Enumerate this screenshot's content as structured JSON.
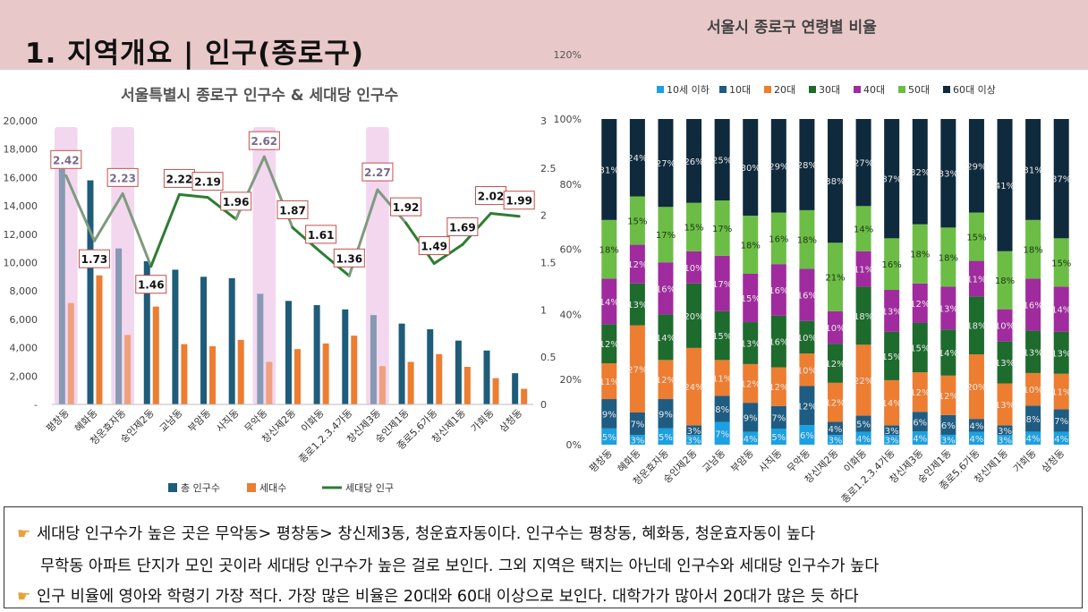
{
  "slide": {
    "title": "1. 지역개요 | 인구(종로구)"
  },
  "notes": [
    {
      "icon": "pointing-hand-icon",
      "text": "세대당 인구수가 높은 곳은 무악동> 평창동> 창신제3동, 청운효자동이다. 인구수는 평창동, 혜화동, 청운효자동이 높다"
    },
    {
      "icon": "",
      "text": "무학동 아파트 단지가 모인 곳이라 세대당 인구수가 높은 걸로 보인다. 그외 지역은 택지는 아닌데 인구수와 세대당 인구수가 높다"
    },
    {
      "icon": "pointing-hand-icon",
      "text": "인구 비율에 영아와 학령기 가장 적다. 가장 많은 비율은 20대와 60대 이상으로 보인다. 대학가가 많아서 20대가 많은 듯 하다"
    }
  ],
  "colors": {
    "population": "#1e5c7a",
    "households": "#ed7d31",
    "per_household": "#2e7d32",
    "highlight": "#f3d7ef",
    "age_10under": "#1ba1e2",
    "age_10s": "#1f5c82",
    "age_20s": "#ed7d31",
    "age_30s": "#1e6b2e",
    "age_40s": "#a02b9e",
    "age_50s": "#6cbd45",
    "age_60plus": "#0f2a3c"
  },
  "chart_data": [
    {
      "type": "bar",
      "title": "서울특별시 종로구 인구수 & 세대당 인구수",
      "categories": [
        "평창동",
        "혜화동",
        "청운효자동",
        "숭인제2동",
        "교남동",
        "부암동",
        "사직동",
        "무악동",
        "창신제2동",
        "이화동",
        "종로1.2.3.4가동",
        "창신제3동",
        "숭인제1동",
        "종로5.6가동",
        "창신제1동",
        "가회동",
        "삼청동"
      ],
      "highlighted": [
        "평창동",
        "청운효자동",
        "무악동",
        "창신제3동"
      ],
      "series": [
        {
          "name": "총 인구수",
          "axis": "left",
          "values": [
            16600,
            15800,
            11000,
            10100,
            9500,
            9000,
            8900,
            7800,
            7300,
            7000,
            6700,
            6300,
            5700,
            5300,
            4500,
            3800,
            2200
          ]
        },
        {
          "name": "세대수",
          "axis": "left",
          "values": [
            7150,
            9100,
            4900,
            6900,
            4250,
            4100,
            4550,
            3000,
            3900,
            4300,
            4850,
            2700,
            3000,
            3550,
            2650,
            1850,
            1100
          ]
        },
        {
          "name": "세대당 인구",
          "axis": "right",
          "type": "line",
          "values": [
            2.42,
            1.73,
            2.23,
            1.46,
            2.22,
            2.19,
            1.96,
            2.62,
            1.87,
            1.61,
            1.36,
            2.27,
            1.92,
            1.49,
            1.69,
            2.02,
            1.99
          ]
        }
      ],
      "ylim": [
        0,
        20000
      ],
      "yticks": [
        "-",
        "2,000",
        "4,000",
        "6,000",
        "8,000",
        "10,000",
        "12,000",
        "14,000",
        "16,000",
        "18,000",
        "20,000"
      ],
      "y2lim": [
        0,
        3
      ],
      "y2ticks": [
        "0",
        "0.5",
        "1",
        "1.5",
        "2",
        "2.5",
        "3"
      ],
      "legend": "bottom"
    },
    {
      "type": "bar",
      "stacked": true,
      "title": "서울시 종로구 연령별 비율",
      "stray_label": "120%",
      "categories": [
        "평창동",
        "혜화동",
        "청운효자동",
        "숭인제2동",
        "교남동",
        "부암동",
        "사직동",
        "무악동",
        "창신제2동",
        "이화동",
        "종로1.2.3.4가동",
        "창신제3동",
        "숭인제1동",
        "종로5.6가동",
        "창신제1동",
        "가회동",
        "삼청동"
      ],
      "series": [
        {
          "name": "10세 이하",
          "values": [
            5,
            3,
            5,
            3,
            7,
            4,
            5,
            6,
            3,
            4,
            3,
            4,
            3,
            4,
            3,
            4,
            4
          ]
        },
        {
          "name": "10대",
          "values": [
            9,
            7,
            9,
            3,
            8,
            9,
            7,
            12,
            4,
            5,
            3,
            6,
            6,
            4,
            3,
            8,
            7
          ]
        },
        {
          "name": "20대",
          "values": [
            11,
            27,
            12,
            24,
            11,
            12,
            12,
            10,
            12,
            22,
            14,
            12,
            12,
            20,
            13,
            10,
            11
          ]
        },
        {
          "name": "30대",
          "values": [
            12,
            13,
            14,
            20,
            15,
            13,
            16,
            10,
            12,
            18,
            15,
            15,
            14,
            18,
            13,
            13,
            13
          ]
        },
        {
          "name": "40대",
          "values": [
            14,
            12,
            16,
            10,
            17,
            15,
            16,
            16,
            10,
            11,
            13,
            12,
            13,
            11,
            10,
            16,
            14
          ]
        },
        {
          "name": "50대",
          "values": [
            18,
            15,
            17,
            15,
            17,
            18,
            16,
            18,
            21,
            14,
            16,
            18,
            18,
            15,
            18,
            18,
            15
          ]
        },
        {
          "name": "60대 이상",
          "values": [
            31,
            24,
            27,
            26,
            25,
            30,
            29,
            28,
            38,
            27,
            37,
            32,
            33,
            29,
            41,
            31,
            37
          ]
        }
      ],
      "ylim": [
        0,
        100
      ],
      "yticks": [
        "0%",
        "20%",
        "40%",
        "60%",
        "80%",
        "100%"
      ],
      "legend": "top"
    }
  ]
}
